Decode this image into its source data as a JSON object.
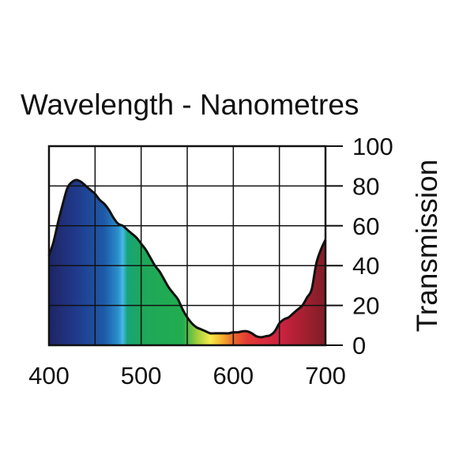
{
  "chart_data": {
    "type": "area",
    "title": "Wavelength - Nanometres",
    "xlabel": "Wavelength - Nanometres",
    "ylabel": "Transmission",
    "xlim": [
      400,
      700
    ],
    "ylim": [
      0,
      100
    ],
    "x_ticks": [
      400,
      500,
      600,
      700
    ],
    "y_ticks": [
      0,
      20,
      40,
      60,
      80,
      100
    ],
    "x_tick_labels": [
      "400",
      "500",
      "600",
      "700"
    ],
    "y_tick_labels": [
      "0",
      "20",
      "40",
      "60",
      "80",
      "100"
    ],
    "grid": true,
    "fill": "visible spectrum colours",
    "spectrum_colors": [
      {
        "wavelength": 400,
        "color": "#1e2464"
      },
      {
        "wavelength": 430,
        "color": "#213a8c"
      },
      {
        "wavelength": 460,
        "color": "#1d5aa8"
      },
      {
        "wavelength": 475,
        "color": "#2a8fcc"
      },
      {
        "wavelength": 480,
        "color": "#47b9e4"
      },
      {
        "wavelength": 485,
        "color": "#17a47a"
      },
      {
        "wavelength": 500,
        "color": "#1ea85a"
      },
      {
        "wavelength": 545,
        "color": "#22ac4f"
      },
      {
        "wavelength": 560,
        "color": "#9bcd3d"
      },
      {
        "wavelength": 575,
        "color": "#f6ea4a"
      },
      {
        "wavelength": 588,
        "color": "#f5b12e"
      },
      {
        "wavelength": 600,
        "color": "#ec6a2a"
      },
      {
        "wavelength": 615,
        "color": "#e43a35"
      },
      {
        "wavelength": 650,
        "color": "#cf2240"
      },
      {
        "wavelength": 700,
        "color": "#7e1e24"
      }
    ],
    "series": [
      {
        "name": "Transmission",
        "x": [
          400,
          405,
          410,
          415,
          420,
          425,
          430,
          435,
          440,
          445,
          450,
          455,
          460,
          465,
          470,
          475,
          480,
          485,
          490,
          495,
          500,
          505,
          510,
          515,
          520,
          525,
          530,
          535,
          540,
          545,
          550,
          555,
          560,
          565,
          570,
          575,
          580,
          585,
          590,
          595,
          600,
          605,
          610,
          615,
          620,
          625,
          630,
          635,
          640,
          645,
          650,
          655,
          660,
          665,
          670,
          675,
          680,
          685,
          690,
          695,
          700
        ],
        "values": [
          45,
          52,
          62,
          71,
          79,
          82,
          83,
          82,
          80,
          78,
          76,
          73,
          71,
          68,
          64,
          61,
          60,
          58,
          56,
          54,
          51,
          48,
          44,
          40,
          37,
          33,
          29,
          26,
          23,
          18,
          14,
          11,
          9,
          8,
          7,
          6,
          6,
          6,
          6,
          6,
          6.5,
          6.5,
          7,
          7,
          6,
          4.5,
          4,
          4.5,
          5,
          7,
          11,
          13,
          14,
          16,
          18,
          20,
          24,
          28,
          41,
          48,
          53
        ]
      }
    ]
  }
}
